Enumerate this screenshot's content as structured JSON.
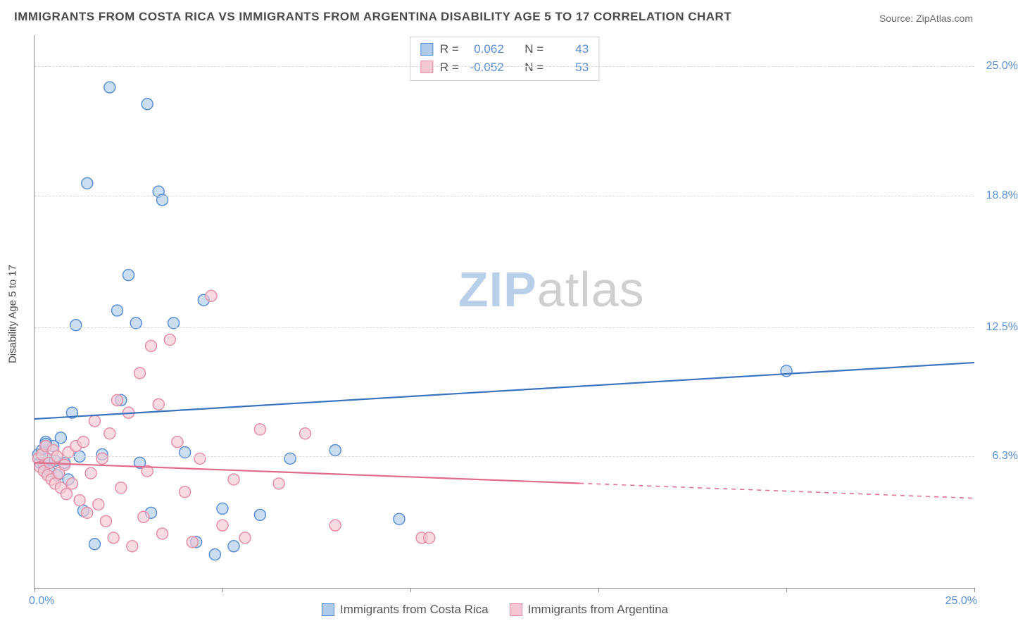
{
  "title": "IMMIGRANTS FROM COSTA RICA VS IMMIGRANTS FROM ARGENTINA DISABILITY AGE 5 TO 17 CORRELATION CHART",
  "source": "Source: ZipAtlas.com",
  "ylabel": "Disability Age 5 to 17",
  "watermark_zip": "ZIP",
  "watermark_atlas": "atlas",
  "chart": {
    "type": "scatter-correlation",
    "background_color": "#ffffff",
    "grid_color": "#d8d8d8",
    "axis_color": "#888888",
    "tick_label_color": "#5b8fd6",
    "xlim": [
      0,
      25
    ],
    "ylim": [
      0,
      26.5
    ],
    "x_ticks": [
      0,
      5,
      10,
      15,
      20,
      25
    ],
    "x_tick_labels": {
      "min": "0.0%",
      "max": "25.0%"
    },
    "y_gridlines": [
      6.3,
      12.5,
      18.8,
      25.0
    ],
    "y_tick_labels": [
      "6.3%",
      "12.5%",
      "18.8%",
      "25.0%"
    ],
    "marker_radius": 8,
    "marker_stroke_width": 1.5,
    "trend_line_width": 2.2,
    "series": [
      {
        "name": "Immigrants from Costa Rica",
        "key": "costa_rica",
        "fill_color": "#aecbea",
        "stroke_color": "#5b8fd6",
        "line_color": "#3a73c0",
        "R": "0.062",
        "N": "43",
        "trend": {
          "x1": 0,
          "y1": 8.1,
          "x2": 25,
          "y2": 10.8,
          "solid_until": 25
        },
        "points": [
          [
            0.1,
            6.4
          ],
          [
            0.15,
            6.0
          ],
          [
            0.2,
            6.6
          ],
          [
            0.25,
            5.9
          ],
          [
            0.3,
            7.0
          ],
          [
            0.35,
            6.2
          ],
          [
            0.4,
            5.6
          ],
          [
            0.5,
            6.8
          ],
          [
            0.55,
            6.1
          ],
          [
            0.6,
            5.4
          ],
          [
            0.7,
            7.2
          ],
          [
            0.8,
            6.0
          ],
          [
            0.9,
            5.2
          ],
          [
            1.0,
            8.4
          ],
          [
            1.1,
            12.6
          ],
          [
            1.2,
            6.3
          ],
          [
            1.3,
            3.7
          ],
          [
            1.4,
            19.4
          ],
          [
            1.6,
            2.1
          ],
          [
            1.8,
            6.4
          ],
          [
            2.0,
            24.0
          ],
          [
            2.2,
            13.3
          ],
          [
            2.3,
            9.0
          ],
          [
            2.5,
            15.0
          ],
          [
            2.7,
            12.7
          ],
          [
            2.8,
            6.0
          ],
          [
            3.0,
            23.2
          ],
          [
            3.1,
            3.6
          ],
          [
            3.3,
            19.0
          ],
          [
            3.4,
            18.6
          ],
          [
            3.7,
            12.7
          ],
          [
            4.0,
            6.5
          ],
          [
            4.3,
            2.2
          ],
          [
            4.5,
            13.8
          ],
          [
            4.8,
            1.6
          ],
          [
            5.0,
            3.8
          ],
          [
            5.3,
            2.0
          ],
          [
            6.0,
            3.5
          ],
          [
            6.8,
            6.2
          ],
          [
            8.0,
            6.6
          ],
          [
            9.7,
            3.3
          ],
          [
            20.0,
            10.4
          ],
          [
            0.3,
            6.9
          ]
        ]
      },
      {
        "name": "Immigrants from Argentina",
        "key": "argentina",
        "fill_color": "#f4c7d2",
        "stroke_color": "#e58fa6",
        "line_color": "#e06b8a",
        "R": "-0.052",
        "N": "53",
        "trend": {
          "x1": 0,
          "y1": 6.0,
          "x2": 25,
          "y2": 4.3,
          "solid_until": 14.5
        },
        "points": [
          [
            0.1,
            6.2
          ],
          [
            0.15,
            5.8
          ],
          [
            0.2,
            6.4
          ],
          [
            0.25,
            5.6
          ],
          [
            0.3,
            6.8
          ],
          [
            0.35,
            5.4
          ],
          [
            0.4,
            6.0
          ],
          [
            0.45,
            5.2
          ],
          [
            0.5,
            6.6
          ],
          [
            0.55,
            5.0
          ],
          [
            0.6,
            6.3
          ],
          [
            0.65,
            5.5
          ],
          [
            0.7,
            4.8
          ],
          [
            0.8,
            5.9
          ],
          [
            0.85,
            4.5
          ],
          [
            0.9,
            6.5
          ],
          [
            1.0,
            5.0
          ],
          [
            1.1,
            6.8
          ],
          [
            1.2,
            4.2
          ],
          [
            1.3,
            7.0
          ],
          [
            1.4,
            3.6
          ],
          [
            1.5,
            5.5
          ],
          [
            1.6,
            8.0
          ],
          [
            1.7,
            4.0
          ],
          [
            1.8,
            6.2
          ],
          [
            1.9,
            3.2
          ],
          [
            2.0,
            7.4
          ],
          [
            2.1,
            2.4
          ],
          [
            2.2,
            9.0
          ],
          [
            2.3,
            4.8
          ],
          [
            2.5,
            8.4
          ],
          [
            2.6,
            2.0
          ],
          [
            2.8,
            10.3
          ],
          [
            2.9,
            3.4
          ],
          [
            3.0,
            5.6
          ],
          [
            3.1,
            11.6
          ],
          [
            3.3,
            8.8
          ],
          [
            3.4,
            2.6
          ],
          [
            3.6,
            11.9
          ],
          [
            3.8,
            7.0
          ],
          [
            4.0,
            4.6
          ],
          [
            4.2,
            2.2
          ],
          [
            4.4,
            6.2
          ],
          [
            4.7,
            14.0
          ],
          [
            5.0,
            3.0
          ],
          [
            5.3,
            5.2
          ],
          [
            5.6,
            2.4
          ],
          [
            6.0,
            7.6
          ],
          [
            6.5,
            5.0
          ],
          [
            7.2,
            7.4
          ],
          [
            8.0,
            3.0
          ],
          [
            10.3,
            2.4
          ],
          [
            10.5,
            2.4
          ]
        ]
      }
    ],
    "stat_legend": {
      "label_R": "R =",
      "label_N": "N ="
    }
  },
  "bottom_legend": {
    "items": [
      {
        "series": "costa_rica",
        "label": "Immigrants from Costa Rica"
      },
      {
        "series": "argentina",
        "label": "Immigrants from Argentina"
      }
    ]
  }
}
